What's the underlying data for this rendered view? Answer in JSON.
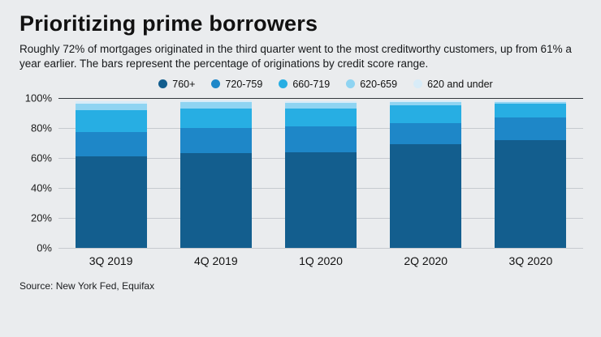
{
  "title": "Prioritizing prime borrowers",
  "subtitle": "Roughly 72% of mortgages originated in the third quarter went to the most creditworthy customers, up from 61% a year earlier. The bars represent the percentage of originations by credit score range.",
  "source": "Source: New York Fed, Equifax",
  "chart_data": {
    "type": "bar",
    "stacked": true,
    "title": "Prioritizing prime borrowers",
    "categories": [
      "3Q 2019",
      "4Q 2019",
      "1Q 2020",
      "2Q 2020",
      "3Q 2020"
    ],
    "series": [
      {
        "name": "760+",
        "color": "#135e8e",
        "values": [
          61,
          63,
          64,
          69,
          72
        ]
      },
      {
        "name": "720-759",
        "color": "#1e87c8",
        "values": [
          16,
          17,
          17,
          14,
          15
        ]
      },
      {
        "name": "660-719",
        "color": "#27aee3",
        "values": [
          15,
          13,
          12,
          12,
          9
        ]
      },
      {
        "name": "620-659",
        "color": "#8fd4f2",
        "values": [
          4,
          4,
          4,
          2.5,
          1.5
        ]
      },
      {
        "name": "620 and under",
        "color": "#d8ecf8",
        "values": [
          2,
          1.5,
          1,
          1,
          1
        ]
      }
    ],
    "xlabel": "",
    "ylabel": "",
    "ylim": [
      0,
      100
    ],
    "yticks": [
      100,
      80,
      60,
      40,
      20,
      0
    ],
    "ytick_labels": [
      "100%",
      "80%",
      "60%",
      "40%",
      "20%",
      "0%"
    ],
    "grid": true,
    "legend_position": "top"
  }
}
